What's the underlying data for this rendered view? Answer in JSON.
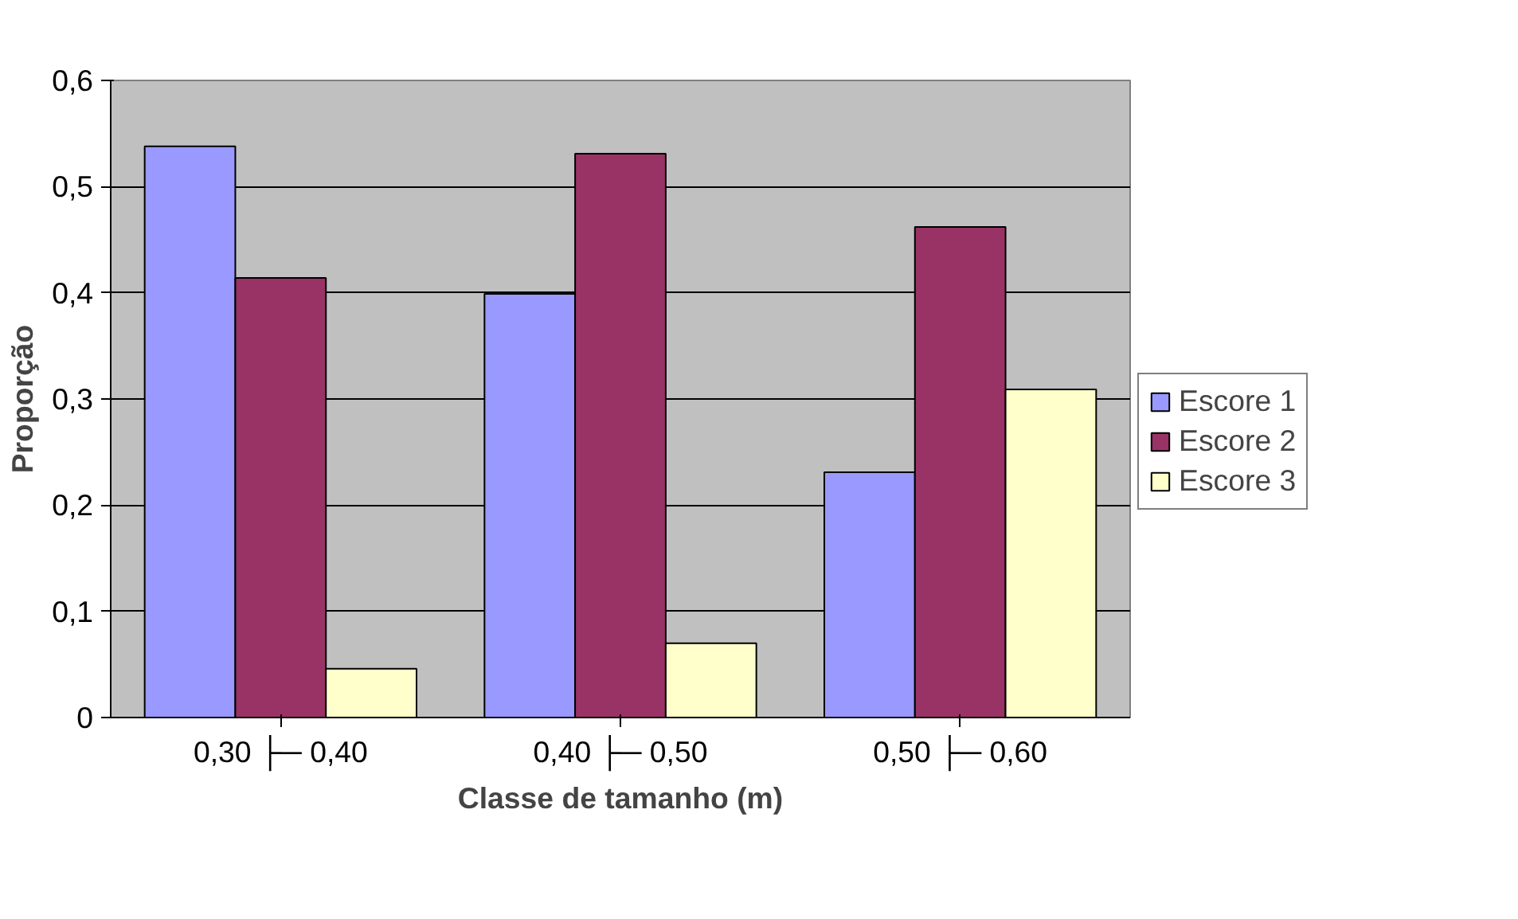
{
  "chart_data": {
    "type": "bar",
    "xlabel": "Classe de tamanho (m)",
    "ylabel": "Proporção",
    "categories": [
      "0,30 ├─ 0,40",
      "0,40 ├─ 0,50",
      "0,50 ├─ 0,60"
    ],
    "series": [
      {
        "name": "Escore 1",
        "color": "#9999ff",
        "values": [
          0.538,
          0.399,
          0.231
        ]
      },
      {
        "name": "Escore 2",
        "color": "#993366",
        "values": [
          0.414,
          0.531,
          0.462
        ]
      },
      {
        "name": "Escore 3",
        "color": "#ffffcc",
        "values": [
          0.046,
          0.07,
          0.309
        ]
      }
    ],
    "ylim": [
      0,
      0.6
    ],
    "yticks": [
      0,
      {
        "value": 0.1,
        "label": "0,1"
      },
      {
        "value": 0.2,
        "label": "0,2"
      },
      {
        "value": 0.3,
        "label": "0,3"
      },
      {
        "value": 0.4,
        "label": "0,4"
      },
      {
        "value": 0.5,
        "label": "0,5"
      },
      {
        "value": 0.6,
        "label": "0,6"
      }
    ],
    "grid": "y",
    "legend": "right"
  }
}
